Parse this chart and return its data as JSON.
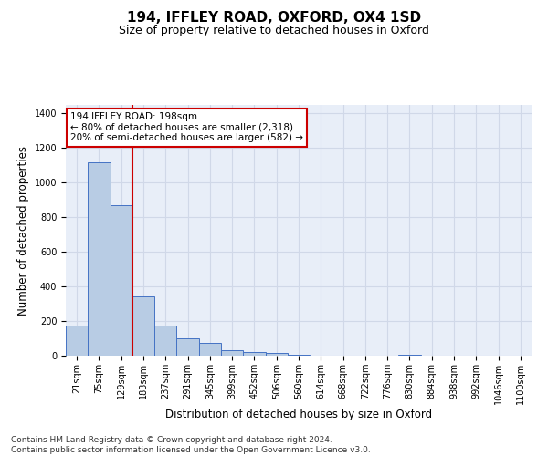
{
  "title1": "194, IFFLEY ROAD, OXFORD, OX4 1SD",
  "title2": "Size of property relative to detached houses in Oxford",
  "xlabel": "Distribution of detached houses by size in Oxford",
  "ylabel": "Number of detached properties",
  "categories": [
    "21sqm",
    "75sqm",
    "129sqm",
    "183sqm",
    "237sqm",
    "291sqm",
    "345sqm",
    "399sqm",
    "452sqm",
    "506sqm",
    "560sqm",
    "614sqm",
    "668sqm",
    "722sqm",
    "776sqm",
    "830sqm",
    "884sqm",
    "938sqm",
    "992sqm",
    "1046sqm",
    "1100sqm"
  ],
  "values": [
    175,
    1120,
    870,
    345,
    175,
    100,
    75,
    30,
    20,
    18,
    5,
    0,
    0,
    0,
    0,
    5,
    0,
    0,
    0,
    0,
    0
  ],
  "bar_color": "#b8cce4",
  "bar_edge_color": "#4472c4",
  "vline_color": "#cc0000",
  "vline_x_index": 3,
  "annotation_text": "194 IFFLEY ROAD: 198sqm\n← 80% of detached houses are smaller (2,318)\n20% of semi-detached houses are larger (582) →",
  "annotation_box_color": "#ffffff",
  "annotation_box_edge": "#cc0000",
  "ylim": [
    0,
    1450
  ],
  "yticks": [
    0,
    200,
    400,
    600,
    800,
    1000,
    1200,
    1400
  ],
  "grid_color": "#d0d8e8",
  "bg_color": "#e8eef8",
  "footnote": "Contains HM Land Registry data © Crown copyright and database right 2024.\nContains public sector information licensed under the Open Government Licence v3.0.",
  "title_fontsize": 11,
  "subtitle_fontsize": 9,
  "label_fontsize": 8.5,
  "tick_fontsize": 7,
  "footnote_fontsize": 6.5,
  "annot_fontsize": 7.5
}
